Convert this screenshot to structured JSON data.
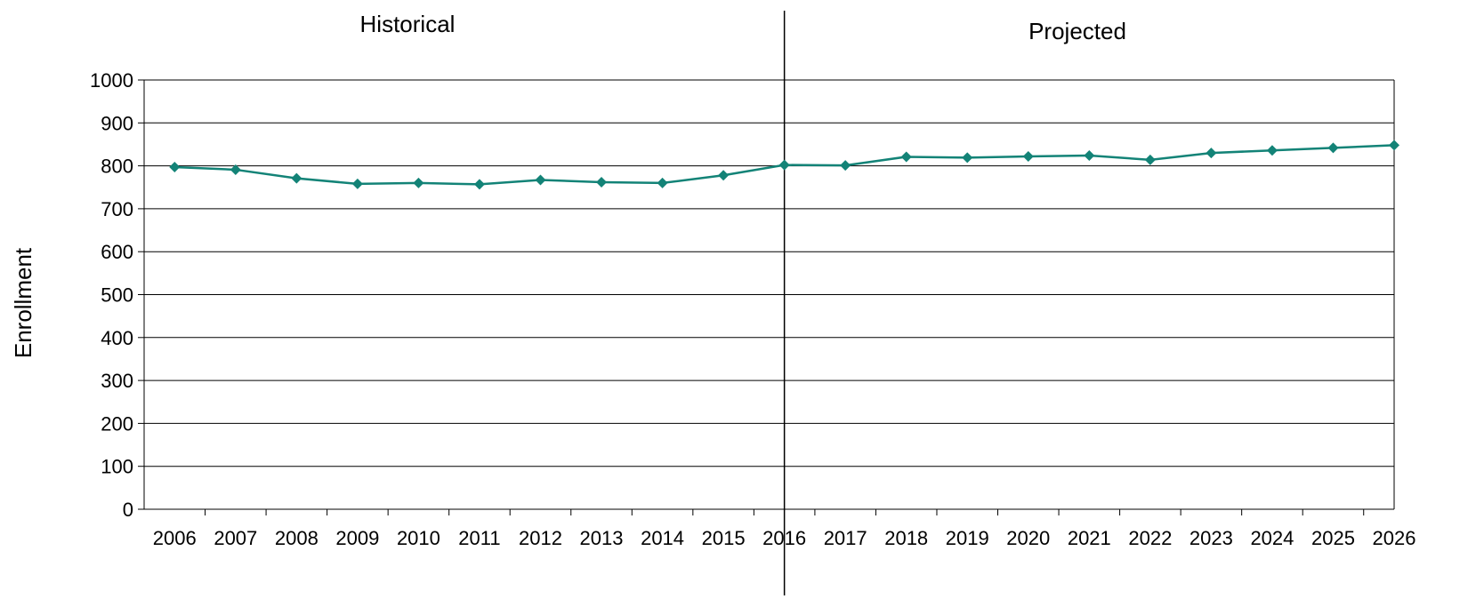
{
  "chart_data": {
    "type": "line",
    "title": "",
    "xlabel": "",
    "ylabel": "Enrollment",
    "ylim": [
      0,
      1000
    ],
    "yticks": [
      0,
      100,
      200,
      300,
      400,
      500,
      600,
      700,
      800,
      900,
      1000
    ],
    "categories": [
      "2006",
      "2007",
      "2008",
      "2009",
      "2010",
      "2011",
      "2012",
      "2013",
      "2014",
      "2015",
      "2016",
      "2017",
      "2018",
      "2019",
      "2020",
      "2021",
      "2022",
      "2023",
      "2024",
      "2025",
      "2026"
    ],
    "series": [
      {
        "values": [
          797,
          791,
          771,
          758,
          760,
          757,
          767,
          762,
          760,
          778,
          802,
          801,
          821,
          819,
          822,
          824,
          814,
          830,
          836,
          842,
          848
        ]
      }
    ],
    "annotations": {
      "left_region": "Historical",
      "right_region": "Projected"
    },
    "divider_after_category": "2016",
    "grid": "horizontal",
    "legend": "none",
    "colors": {
      "series": "#138377",
      "grid": "#000000",
      "divider": "#000000"
    }
  }
}
